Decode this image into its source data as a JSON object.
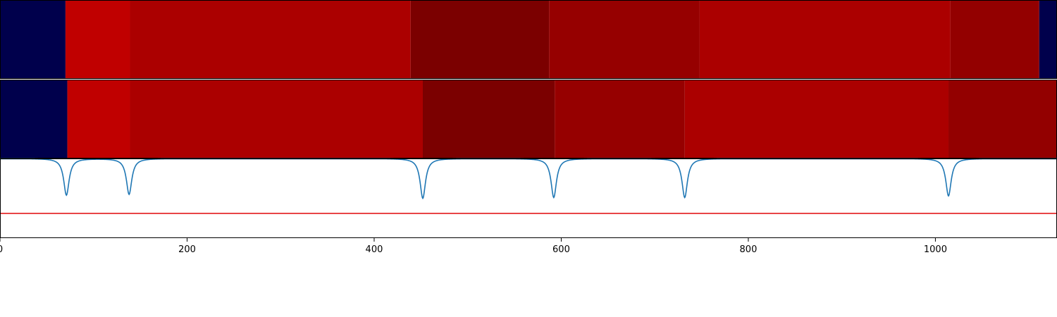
{
  "chart_data": [
    {
      "type": "heatmap",
      "title": "",
      "x_range": [
        0,
        1130
      ],
      "segments": [
        {
          "start": 0,
          "end": 70,
          "color": "#00004c"
        },
        {
          "start": 70,
          "end": 139,
          "color": "#c00000"
        },
        {
          "start": 139,
          "end": 439,
          "color": "#ab0000"
        },
        {
          "start": 439,
          "end": 587,
          "color": "#7b0000"
        },
        {
          "start": 587,
          "end": 748,
          "color": "#960000"
        },
        {
          "start": 748,
          "end": 1016,
          "color": "#ab0000"
        },
        {
          "start": 1016,
          "end": 1111,
          "color": "#930000"
        },
        {
          "start": 1111,
          "end": 1130,
          "color": "#00004c"
        }
      ]
    },
    {
      "type": "heatmap",
      "title": "",
      "x_range": [
        0,
        1130
      ],
      "segments": [
        {
          "start": 0,
          "end": 72,
          "color": "#00004c"
        },
        {
          "start": 72,
          "end": 139,
          "color": "#c00000"
        },
        {
          "start": 139,
          "end": 452,
          "color": "#ab0000"
        },
        {
          "start": 452,
          "end": 593,
          "color": "#7b0000"
        },
        {
          "start": 593,
          "end": 732,
          "color": "#960000"
        },
        {
          "start": 732,
          "end": 1014,
          "color": "#ab0000"
        },
        {
          "start": 1014,
          "end": 1130,
          "color": "#930000"
        }
      ]
    },
    {
      "type": "line",
      "title": "",
      "xlabel": "",
      "ylabel": "",
      "xlim": [
        0,
        1130
      ],
      "ylim": [
        0,
        1
      ],
      "x_ticks": [
        0,
        200,
        400,
        600,
        800,
        1000
      ],
      "x_tick_labels": [
        "0",
        "200",
        "400",
        "600",
        "800",
        "1000"
      ],
      "series": [
        {
          "color": "#1f77b4",
          "baseline": 1.0,
          "dips": [
            {
              "x": 71,
              "depth": 0.46,
              "width": 3.5
            },
            {
              "x": 138,
              "depth": 0.45,
              "width": 3.5
            },
            {
              "x": 452,
              "depth": 0.5,
              "width": 3.5
            },
            {
              "x": 592,
              "depth": 0.49,
              "width": 3.5
            },
            {
              "x": 732,
              "depth": 0.49,
              "width": 3.5
            },
            {
              "x": 1014,
              "depth": 0.47,
              "width": 3.5
            }
          ]
        }
      ],
      "threshold": {
        "y": 0.31,
        "color": "#e31a1c"
      }
    }
  ]
}
